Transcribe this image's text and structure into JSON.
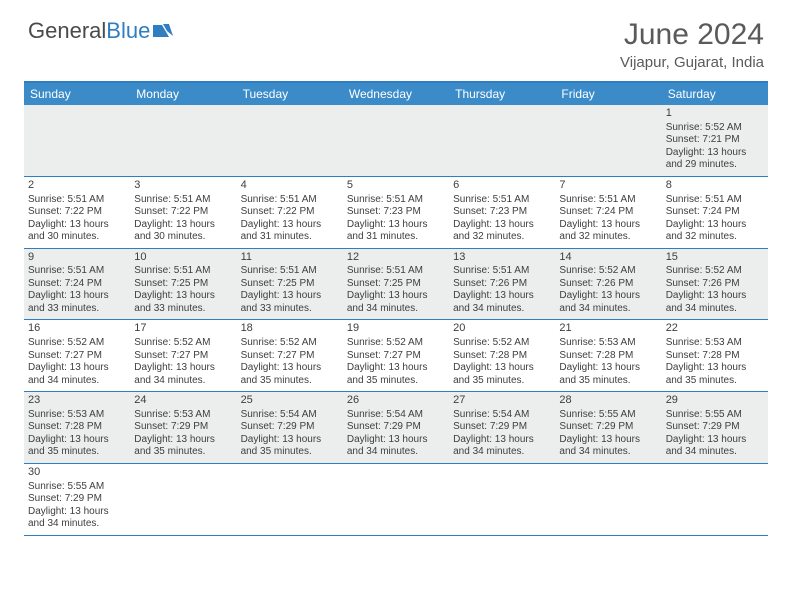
{
  "logo": {
    "text1": "General",
    "text2": "Blue",
    "icon_color": "#2f7ec1"
  },
  "title": "June 2024",
  "location": "Vijapur, Gujarat, India",
  "header_bg": "#3b8bc9",
  "header_border": "#2f7ec1",
  "alt_row_bg": "#eceeee",
  "text_color": "#3e3e3e",
  "weekdays": [
    "Sunday",
    "Monday",
    "Tuesday",
    "Wednesday",
    "Thursday",
    "Friday",
    "Saturday"
  ],
  "weeks": [
    [
      null,
      null,
      null,
      null,
      null,
      null,
      {
        "d": "1",
        "sr": "5:52 AM",
        "ss": "7:21 PM",
        "dl": "13 hours and 29 minutes."
      }
    ],
    [
      {
        "d": "2",
        "sr": "5:51 AM",
        "ss": "7:22 PM",
        "dl": "13 hours and 30 minutes."
      },
      {
        "d": "3",
        "sr": "5:51 AM",
        "ss": "7:22 PM",
        "dl": "13 hours and 30 minutes."
      },
      {
        "d": "4",
        "sr": "5:51 AM",
        "ss": "7:22 PM",
        "dl": "13 hours and 31 minutes."
      },
      {
        "d": "5",
        "sr": "5:51 AM",
        "ss": "7:23 PM",
        "dl": "13 hours and 31 minutes."
      },
      {
        "d": "6",
        "sr": "5:51 AM",
        "ss": "7:23 PM",
        "dl": "13 hours and 32 minutes."
      },
      {
        "d": "7",
        "sr": "5:51 AM",
        "ss": "7:24 PM",
        "dl": "13 hours and 32 minutes."
      },
      {
        "d": "8",
        "sr": "5:51 AM",
        "ss": "7:24 PM",
        "dl": "13 hours and 32 minutes."
      }
    ],
    [
      {
        "d": "9",
        "sr": "5:51 AM",
        "ss": "7:24 PM",
        "dl": "13 hours and 33 minutes."
      },
      {
        "d": "10",
        "sr": "5:51 AM",
        "ss": "7:25 PM",
        "dl": "13 hours and 33 minutes."
      },
      {
        "d": "11",
        "sr": "5:51 AM",
        "ss": "7:25 PM",
        "dl": "13 hours and 33 minutes."
      },
      {
        "d": "12",
        "sr": "5:51 AM",
        "ss": "7:25 PM",
        "dl": "13 hours and 34 minutes."
      },
      {
        "d": "13",
        "sr": "5:51 AM",
        "ss": "7:26 PM",
        "dl": "13 hours and 34 minutes."
      },
      {
        "d": "14",
        "sr": "5:52 AM",
        "ss": "7:26 PM",
        "dl": "13 hours and 34 minutes."
      },
      {
        "d": "15",
        "sr": "5:52 AM",
        "ss": "7:26 PM",
        "dl": "13 hours and 34 minutes."
      }
    ],
    [
      {
        "d": "16",
        "sr": "5:52 AM",
        "ss": "7:27 PM",
        "dl": "13 hours and 34 minutes."
      },
      {
        "d": "17",
        "sr": "5:52 AM",
        "ss": "7:27 PM",
        "dl": "13 hours and 34 minutes."
      },
      {
        "d": "18",
        "sr": "5:52 AM",
        "ss": "7:27 PM",
        "dl": "13 hours and 35 minutes."
      },
      {
        "d": "19",
        "sr": "5:52 AM",
        "ss": "7:27 PM",
        "dl": "13 hours and 35 minutes."
      },
      {
        "d": "20",
        "sr": "5:52 AM",
        "ss": "7:28 PM",
        "dl": "13 hours and 35 minutes."
      },
      {
        "d": "21",
        "sr": "5:53 AM",
        "ss": "7:28 PM",
        "dl": "13 hours and 35 minutes."
      },
      {
        "d": "22",
        "sr": "5:53 AM",
        "ss": "7:28 PM",
        "dl": "13 hours and 35 minutes."
      }
    ],
    [
      {
        "d": "23",
        "sr": "5:53 AM",
        "ss": "7:28 PM",
        "dl": "13 hours and 35 minutes."
      },
      {
        "d": "24",
        "sr": "5:53 AM",
        "ss": "7:29 PM",
        "dl": "13 hours and 35 minutes."
      },
      {
        "d": "25",
        "sr": "5:54 AM",
        "ss": "7:29 PM",
        "dl": "13 hours and 35 minutes."
      },
      {
        "d": "26",
        "sr": "5:54 AM",
        "ss": "7:29 PM",
        "dl": "13 hours and 34 minutes."
      },
      {
        "d": "27",
        "sr": "5:54 AM",
        "ss": "7:29 PM",
        "dl": "13 hours and 34 minutes."
      },
      {
        "d": "28",
        "sr": "5:55 AM",
        "ss": "7:29 PM",
        "dl": "13 hours and 34 minutes."
      },
      {
        "d": "29",
        "sr": "5:55 AM",
        "ss": "7:29 PM",
        "dl": "13 hours and 34 minutes."
      }
    ],
    [
      {
        "d": "30",
        "sr": "5:55 AM",
        "ss": "7:29 PM",
        "dl": "13 hours and 34 minutes."
      },
      null,
      null,
      null,
      null,
      null,
      null
    ]
  ],
  "labels": {
    "sunrise": "Sunrise:",
    "sunset": "Sunset:",
    "daylight": "Daylight:"
  }
}
